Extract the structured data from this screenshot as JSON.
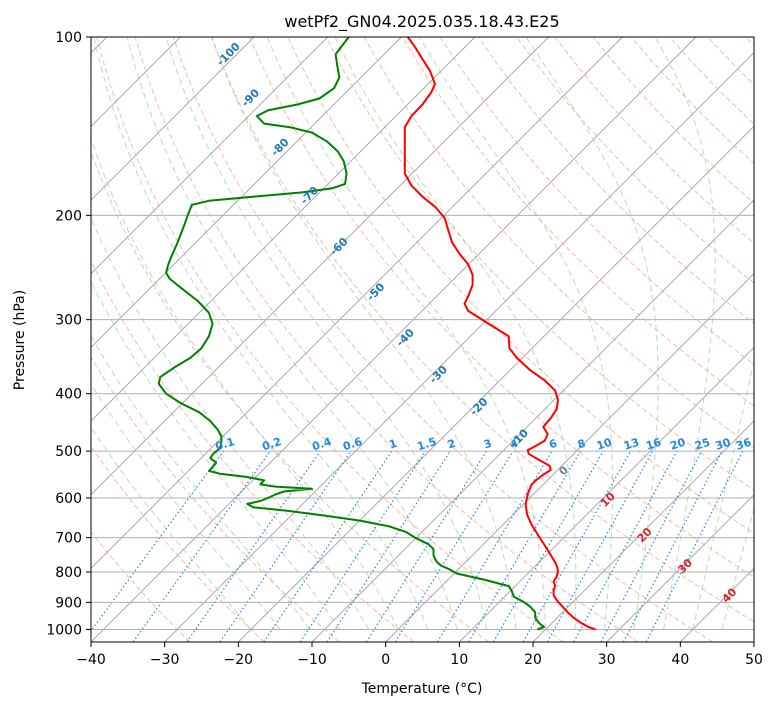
{
  "chart_data": {
    "type": "line",
    "subtype": "skew-T log-P diagram",
    "title": "wetPf2_GN04.2025.035.18.43.E25",
    "xlabel": "Temperature (°C)",
    "ylabel": "Pressure (hPa)",
    "xlim": [
      -40,
      50
    ],
    "ylim": [
      1050,
      100
    ],
    "y_scale": "log",
    "grid": true,
    "x_ticks": [
      "−40",
      "−30",
      "−20",
      "−10",
      "0",
      "10",
      "20",
      "30",
      "40",
      "50"
    ],
    "y_ticks": [
      {
        "p": 100,
        "label": "100"
      },
      {
        "p": 200,
        "label": "200"
      },
      {
        "p": 300,
        "label": "300"
      },
      {
        "p": 400,
        "label": "400"
      },
      {
        "p": 500,
        "label": "500"
      },
      {
        "p": 600,
        "label": "600"
      },
      {
        "p": 700,
        "label": "700"
      },
      {
        "p": 800,
        "label": "800"
      },
      {
        "p": 900,
        "label": "900"
      },
      {
        "p": 1000,
        "label": "1000"
      }
    ],
    "series": [
      {
        "color": "#ff0000",
        "points": [
          [
            28.5,
            1000
          ],
          [
            27.5,
            990
          ],
          [
            26.5,
            975
          ],
          [
            25.5,
            955
          ],
          [
            24.7,
            935
          ],
          [
            24.0,
            915
          ],
          [
            23.3,
            895
          ],
          [
            22.8,
            875
          ],
          [
            22.8,
            860
          ],
          [
            23.0,
            845
          ],
          [
            22.8,
            830
          ],
          [
            23.2,
            815
          ],
          [
            23.4,
            800
          ],
          [
            23.3,
            785
          ],
          [
            23.0,
            770
          ],
          [
            22.3,
            745
          ],
          [
            21.4,
            715
          ],
          [
            20.6,
            690
          ],
          [
            19.8,
            665
          ],
          [
            19.2,
            640
          ],
          [
            19.0,
            615
          ],
          [
            19.3,
            590
          ],
          [
            19.8,
            570
          ],
          [
            20.4,
            560
          ],
          [
            21.4,
            548
          ],
          [
            22.4,
            538
          ],
          [
            22.3,
            530
          ],
          [
            21.4,
            522
          ],
          [
            20.3,
            513
          ],
          [
            19.4,
            505
          ],
          [
            19.3,
            498
          ],
          [
            20.4,
            490
          ],
          [
            21.6,
            480
          ],
          [
            22.0,
            468
          ],
          [
            21.4,
            455
          ],
          [
            22.4,
            440
          ],
          [
            23.2,
            425
          ],
          [
            23.4,
            410
          ],
          [
            23.0,
            395
          ],
          [
            21.6,
            380
          ],
          [
            19.6,
            365
          ],
          [
            17.8,
            348
          ],
          [
            16.8,
            335
          ],
          [
            16.7,
            320
          ],
          [
            14.0,
            305
          ],
          [
            11.2,
            290
          ],
          [
            10.7,
            282
          ],
          [
            11.2,
            274
          ],
          [
            11.8,
            262
          ],
          [
            11.8,
            252
          ],
          [
            11.2,
            242
          ],
          [
            10.0,
            232
          ],
          [
            9.0,
            222
          ],
          [
            8.5,
            212
          ],
          [
            8.0,
            202
          ],
          [
            6.8,
            194
          ],
          [
            5.0,
            186
          ],
          [
            3.5,
            178
          ],
          [
            2.6,
            170
          ],
          [
            2.6,
            160
          ],
          [
            2.6,
            150
          ],
          [
            2.6,
            142
          ],
          [
            3.5,
            136
          ],
          [
            5.0,
            130
          ],
          [
            6.2,
            124
          ],
          [
            6.7,
            120
          ],
          [
            6.0,
            114
          ],
          [
            5.0,
            109
          ],
          [
            4.0,
            104
          ],
          [
            3.0,
            100
          ]
        ]
      },
      {
        "color": "#008000",
        "points": [
          [
            20.6,
            1000
          ],
          [
            21.5,
            990
          ],
          [
            20.8,
            975
          ],
          [
            20.3,
            955
          ],
          [
            20.3,
            935
          ],
          [
            19.6,
            915
          ],
          [
            18.8,
            900
          ],
          [
            17.4,
            880
          ],
          [
            17.1,
            860
          ],
          [
            16.7,
            845
          ],
          [
            13.5,
            825
          ],
          [
            9.7,
            805
          ],
          [
            8.5,
            790
          ],
          [
            7.5,
            780
          ],
          [
            6.9,
            768
          ],
          [
            6.5,
            750
          ],
          [
            6.5,
            732
          ],
          [
            5.8,
            718
          ],
          [
            4.0,
            700
          ],
          [
            2.8,
            685
          ],
          [
            0.5,
            670
          ],
          [
            -3.5,
            655
          ],
          [
            -8.5,
            642
          ],
          [
            -13.5,
            630
          ],
          [
            -18.0,
            622
          ],
          [
            -18.8,
            614
          ],
          [
            -17.0,
            607
          ],
          [
            -16.0,
            600
          ],
          [
            -15.0,
            592
          ],
          [
            -13.8,
            585
          ],
          [
            -10.0,
            579
          ],
          [
            -15.0,
            574
          ],
          [
            -17.0,
            569
          ],
          [
            -16.5,
            560
          ],
          [
            -18.8,
            553
          ],
          [
            -22.5,
            546
          ],
          [
            -24.0,
            540
          ],
          [
            -23.5,
            532
          ],
          [
            -23.0,
            523
          ],
          [
            -23.8,
            514
          ],
          [
            -23.4,
            505
          ],
          [
            -22.5,
            495
          ],
          [
            -22.3,
            483
          ],
          [
            -22.3,
            472
          ],
          [
            -22.8,
            460
          ],
          [
            -23.8,
            445
          ],
          [
            -25.3,
            430
          ],
          [
            -27.8,
            415
          ],
          [
            -29.8,
            400
          ],
          [
            -30.8,
            385
          ],
          [
            -30.6,
            375
          ],
          [
            -28.5,
            360
          ],
          [
            -26.5,
            348
          ],
          [
            -25.0,
            335
          ],
          [
            -24.0,
            320
          ],
          [
            -23.5,
            305
          ],
          [
            -24.0,
            292
          ],
          [
            -25.5,
            279
          ],
          [
            -27.8,
            265
          ],
          [
            -29.3,
            256
          ],
          [
            -29.8,
            250
          ],
          [
            -29.5,
            242
          ],
          [
            -29.1,
            235
          ],
          [
            -28.3,
            223
          ],
          [
            -27.8,
            215
          ],
          [
            -27.3,
            207
          ],
          [
            -26.8,
            199
          ],
          [
            -26.3,
            192
          ],
          [
            -24.0,
            189
          ],
          [
            -18.0,
            186
          ],
          [
            -11.5,
            183
          ],
          [
            -7.2,
            180
          ],
          [
            -5.5,
            177
          ],
          [
            -5.3,
            170
          ],
          [
            -5.7,
            162
          ],
          [
            -6.5,
            156
          ],
          [
            -8.0,
            150
          ],
          [
            -10.0,
            145
          ],
          [
            -13.0,
            142
          ],
          [
            -16.5,
            140
          ],
          [
            -17.5,
            136
          ],
          [
            -16.0,
            133
          ],
          [
            -12.0,
            130
          ],
          [
            -9.0,
            127
          ],
          [
            -7.0,
            122
          ],
          [
            -6.3,
            117
          ],
          [
            -6.6,
            111
          ],
          [
            -6.8,
            107
          ],
          [
            -5.8,
            103
          ],
          [
            -5.0,
            100
          ]
        ]
      }
    ],
    "isotherm_labels": [
      {
        "t": -100,
        "text": "-100",
        "x": -21,
        "p": 108
      },
      {
        "t": -90,
        "text": "-90",
        "x": -18,
        "p": 128
      },
      {
        "t": -80,
        "text": "-80",
        "x": -14,
        "p": 155
      },
      {
        "t": -70,
        "text": "-70",
        "x": -10,
        "p": 187
      },
      {
        "t": -60,
        "text": "-60",
        "x": -6,
        "p": 228
      },
      {
        "t": -50,
        "text": "-50",
        "x": -1,
        "p": 272
      },
      {
        "t": -40,
        "text": "-40",
        "x": 3,
        "p": 325
      },
      {
        "t": -30,
        "text": "-30",
        "x": 7.5,
        "p": 375
      },
      {
        "t": -20,
        "text": "-20",
        "x": 13,
        "p": 425
      },
      {
        "t": -10,
        "text": "-10",
        "x": 18.5,
        "p": 480
      },
      {
        "t": 0,
        "text": "0",
        "x": 24.5,
        "p": 545
      },
      {
        "t": 10,
        "text": "10",
        "x": 30.5,
        "p": 610
      },
      {
        "t": 20,
        "text": "20",
        "x": 35.5,
        "p": 700
      },
      {
        "t": 30,
        "text": "30",
        "x": 41,
        "p": 790
      },
      {
        "t": 40,
        "text": "40",
        "x": 47,
        "p": 885
      }
    ],
    "mixing_ratio_labels": [
      "0.1",
      "0.2",
      "0.4",
      "0.6",
      "1",
      "1.5",
      "2",
      "3",
      "4",
      "6",
      "8",
      "10",
      "13",
      "16",
      "20",
      "25",
      "30",
      "36"
    ],
    "colors": {
      "temperature": "#ff0000",
      "dewpoint": "#008000",
      "isotherm": "#a0a0a0",
      "dry_adiabat": "#f4a582",
      "moist_adiabat": "#9ccc9c",
      "mixing_ratio": "#1e88e5",
      "isotherm_label": "#1f77b4",
      "warm_label": "#d62728",
      "zero_label": "#808080"
    }
  }
}
